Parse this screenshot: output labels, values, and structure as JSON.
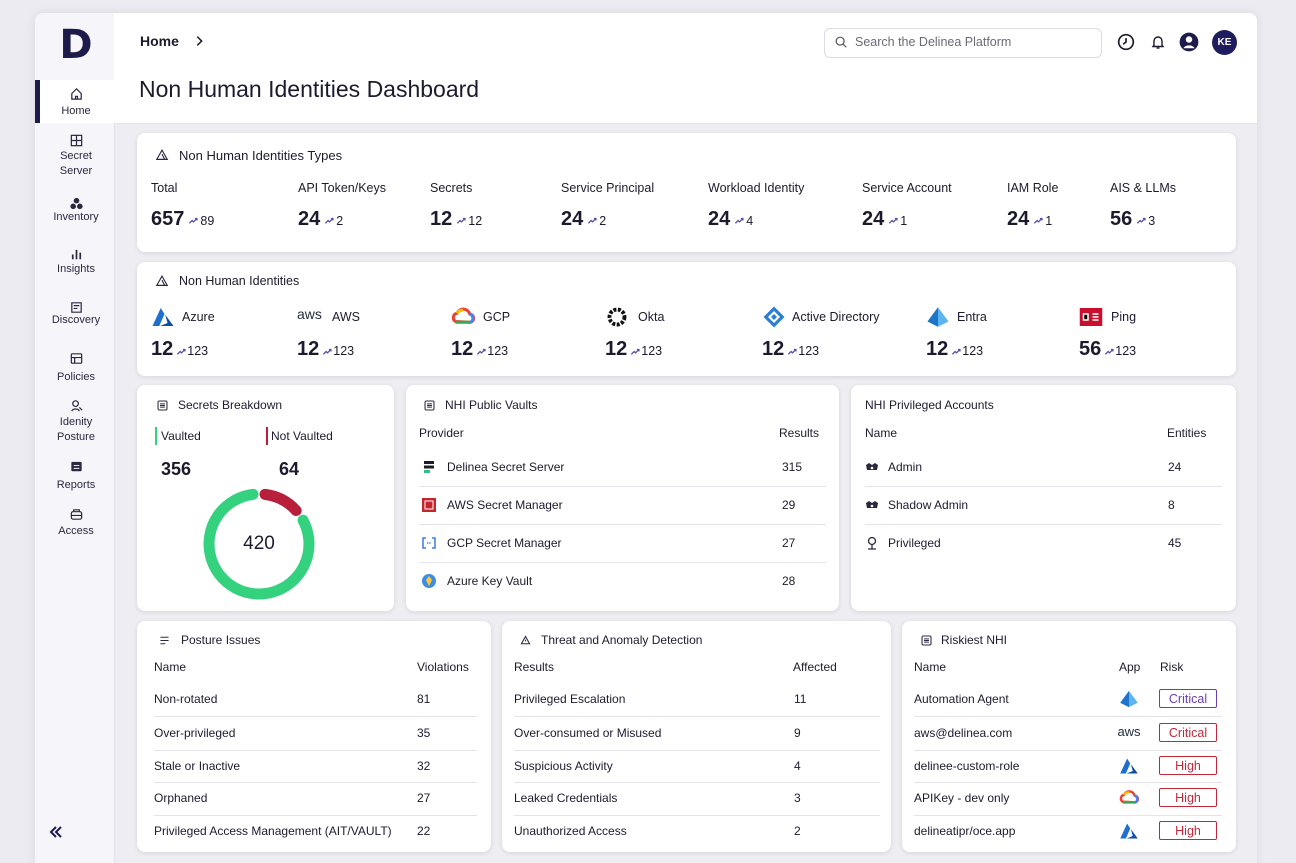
{
  "sidebar": {
    "logo": "D",
    "nav": [
      "Home",
      "Secret Server",
      "Inventory",
      "Insights",
      "Discovery",
      "Policies",
      "Idenity Posture",
      "Reports",
      "Access"
    ]
  },
  "header": {
    "breadcrumb": "Home",
    "title": "Non Human Identities Dashboard",
    "search_placeholder": "Search the Delinea Platform",
    "avatar": "KE"
  },
  "types": {
    "title": "Non Human Identities Types",
    "items": [
      {
        "label": "Total",
        "value": 657,
        "trend": 89
      },
      {
        "label": "API Token/Keys",
        "value": 24,
        "trend": 2
      },
      {
        "label": "Secrets",
        "value": 12,
        "trend": 12
      },
      {
        "label": "Service Principal",
        "value": 24,
        "trend": 2
      },
      {
        "label": "Workload Identity",
        "value": 24,
        "trend": 4
      },
      {
        "label": "Service Account",
        "value": 24,
        "trend": 1
      },
      {
        "label": "IAM Role",
        "value": 24,
        "trend": 1
      },
      {
        "label": "AIS & LLMs",
        "value": 56,
        "trend": 3
      }
    ]
  },
  "nhi": {
    "title": "Non Human Identities",
    "items": [
      {
        "label": "Azure",
        "value": 12,
        "trend": 123
      },
      {
        "label": "AWS",
        "logo_text": "aws",
        "value": 12,
        "trend": 123
      },
      {
        "label": "GCP",
        "value": 12,
        "trend": 123
      },
      {
        "label": "Okta",
        "value": 12,
        "trend": 123
      },
      {
        "label": "Active Directory",
        "value": 12,
        "trend": 123
      },
      {
        "label": "Entra",
        "value": 12,
        "trend": 123
      },
      {
        "label": "Ping",
        "value": 56,
        "trend": 123
      }
    ]
  },
  "secrets": {
    "title": "Secrets Breakdown",
    "vaulted": {
      "label": "Vaulted",
      "value": 356,
      "color": "#34d17f"
    },
    "not_vaulted": {
      "label": "Not Vaulted",
      "value": 64,
      "color": "#b81f3a"
    },
    "total": 420
  },
  "vaults": {
    "title": "NHI Public Vaults",
    "columns": [
      "Provider",
      "Results"
    ],
    "rows": [
      [
        "Delinea Secret Server",
        315
      ],
      [
        "AWS Secret Manager",
        29
      ],
      [
        "GCP Secret Manager",
        27
      ],
      [
        "Azure Key Vault",
        28
      ]
    ]
  },
  "privileged": {
    "title": "NHI Privileged Accounts",
    "columns": [
      "Name",
      "Entities"
    ],
    "rows": [
      [
        "Admin",
        24
      ],
      [
        "Shadow Admin",
        8
      ],
      [
        "Privileged",
        45
      ]
    ]
  },
  "posture": {
    "title": "Posture Issues",
    "columns": [
      "Name",
      "Violations"
    ],
    "rows": [
      [
        "Non-rotated",
        81
      ],
      [
        "Over-privileged",
        35
      ],
      [
        "Stale or Inactive",
        32
      ],
      [
        "Orphaned",
        27
      ],
      [
        "Privileged Access Management (AIT/VAULT)",
        22
      ]
    ]
  },
  "threat": {
    "title": "Threat and Anomaly Detection",
    "columns": [
      "Results",
      "Affected"
    ],
    "rows": [
      [
        "Privileged Escalation",
        11
      ],
      [
        "Over-consumed or Misused",
        9
      ],
      [
        "Suspicious Activity",
        4
      ],
      [
        "Leaked Credentials",
        3
      ],
      [
        "Unauthorized Access",
        2
      ]
    ]
  },
  "riskiest": {
    "title": "Riskiest NHI",
    "columns": [
      "Name",
      "App",
      "Risk"
    ],
    "rows": [
      {
        "name": "Automation Agent",
        "risk": "Critical",
        "color": "#6a3fb5"
      },
      {
        "name": "aws@delinea.com",
        "app": "aws",
        "risk": "Critical",
        "color": "#c0283a"
      },
      {
        "name": "delinee-custom-role",
        "risk": "High",
        "color": "#c0283a"
      },
      {
        "name": "APIKey - dev only",
        "risk": "High",
        "color": "#c0283a"
      },
      {
        "name": "delineatipr/oce.app",
        "risk": "High",
        "color": "#c0283a"
      }
    ]
  }
}
